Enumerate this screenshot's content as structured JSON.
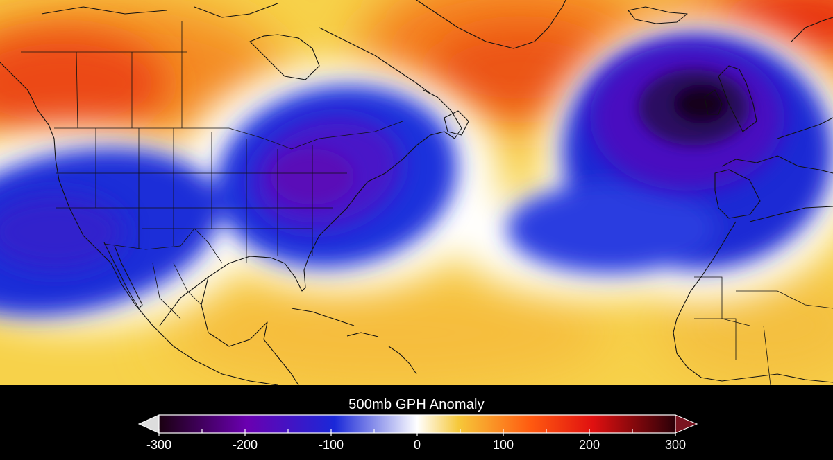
{
  "legend": {
    "title": "500mb GPH Anomaly",
    "ticks": [
      "-300",
      "-200",
      "-100",
      "0",
      "100",
      "200",
      "300"
    ],
    "range": [
      -300,
      300
    ],
    "colors": [
      "#1a0010",
      "#6a00b0",
      "#1a28d8",
      "#ffffff",
      "#f6c83a",
      "#ff5a10",
      "#e01010",
      "#2a0008"
    ]
  },
  "map": {
    "variable": "500mb GPH Anomaly",
    "features": [
      {
        "name": "trough-eastern-us",
        "value": -250
      },
      {
        "name": "trough-west-coast",
        "value": -170
      },
      {
        "name": "low-near-british-isles",
        "value": -300
      },
      {
        "name": "ridge-western-canada",
        "value": 160
      },
      {
        "name": "ridge-greenland",
        "value": 150
      },
      {
        "name": "ridge-subtropical-atlantic",
        "value": 50
      }
    ]
  }
}
